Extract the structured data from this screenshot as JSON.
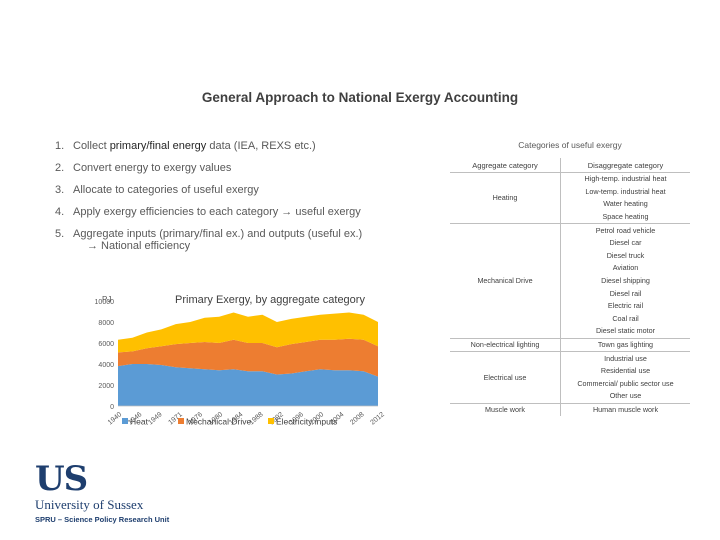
{
  "title": "General Approach to National Exergy Accounting",
  "steps": [
    {
      "num": "1.",
      "pre": "Collect ",
      "highlight": "primary/final energy",
      "post": " data (IEA, REXS etc.)"
    },
    {
      "num": "2.",
      "text": "Convert energy to exergy values"
    },
    {
      "num": "3.",
      "text": "Allocate to categories of useful exergy"
    },
    {
      "num": "4.",
      "text": "Apply exergy efficiencies to each category → useful exergy"
    },
    {
      "num": "5.",
      "text": "Aggregate inputs (primary/final ex.) and outputs (useful ex.)",
      "sub": "→ National efficiency"
    }
  ],
  "categories": {
    "title": "Categories of useful exergy",
    "col_agg": "Aggregate category",
    "col_dis": "Disaggregate category",
    "groups": [
      {
        "name": "Heating",
        "items": [
          "High-temp. industrial heat",
          "Low-temp. industrial heat",
          "Water heating",
          "Space heating"
        ]
      },
      {
        "name": "Mechanical Drive",
        "items": [
          "Petrol road vehicle",
          "Diesel car",
          "Diesel truck",
          "Aviation",
          "Diesel shipping",
          "Diesel rail",
          "Electric rail",
          "Coal rail",
          "Diesel static motor"
        ]
      },
      {
        "name": "Non-electrical lighting",
        "items": [
          "Town gas lighting"
        ]
      },
      {
        "name": "Electrical use",
        "items": [
          "Industrial use",
          "Residential use",
          "Commercial/ public sector use",
          "Other use"
        ]
      },
      {
        "name": "Muscle work",
        "items": [
          "Human muscle work"
        ]
      }
    ]
  },
  "chart_data": {
    "type": "area",
    "stacked": true,
    "title": "Primary Exergy, by aggregate category",
    "ylabel": "PJ",
    "ylim": [
      0,
      10000
    ],
    "yticks": [
      "0",
      "2000",
      "4000",
      "6000",
      "8000",
      "10000"
    ],
    "xtick_labels": [
      "1940",
      "1946",
      "1949",
      "1971",
      "1976",
      "1980",
      "1984",
      "1988",
      "1992",
      "1996",
      "2000",
      "2004",
      "2008",
      "2012"
    ],
    "x": [
      1940,
      1944,
      1948,
      1952,
      1956,
      1960,
      1964,
      1968,
      1972,
      1976,
      1980,
      1984,
      1988,
      1992,
      1996,
      2000,
      2004,
      2008,
      2012
    ],
    "series": [
      {
        "name": "Heat",
        "color": "#5b9bd5",
        "values": [
          3800,
          4000,
          4000,
          3900,
          3700,
          3600,
          3500,
          3400,
          3500,
          3300,
          3300,
          3000,
          3100,
          3300,
          3500,
          3400,
          3400,
          3300,
          2800
        ]
      },
      {
        "name": "Mechanical Drive",
        "color": "#ed7d31",
        "values": [
          1300,
          1200,
          1500,
          1800,
          2200,
          2400,
          2600,
          2600,
          2800,
          2700,
          2700,
          2600,
          2800,
          2800,
          2800,
          2900,
          3000,
          3000,
          2900
        ]
      },
      {
        "name": "Electricity inputs",
        "color": "#ffc000",
        "values": [
          1200,
          1300,
          1500,
          1600,
          1900,
          2000,
          2300,
          2500,
          2600,
          2500,
          2700,
          2400,
          2400,
          2400,
          2400,
          2500,
          2500,
          2400,
          2300
        ]
      }
    ],
    "legend": "bottom"
  },
  "logo": {
    "mark": "US",
    "university": "University of Sussex",
    "unit": "SPRU – Science Policy Research Unit"
  }
}
